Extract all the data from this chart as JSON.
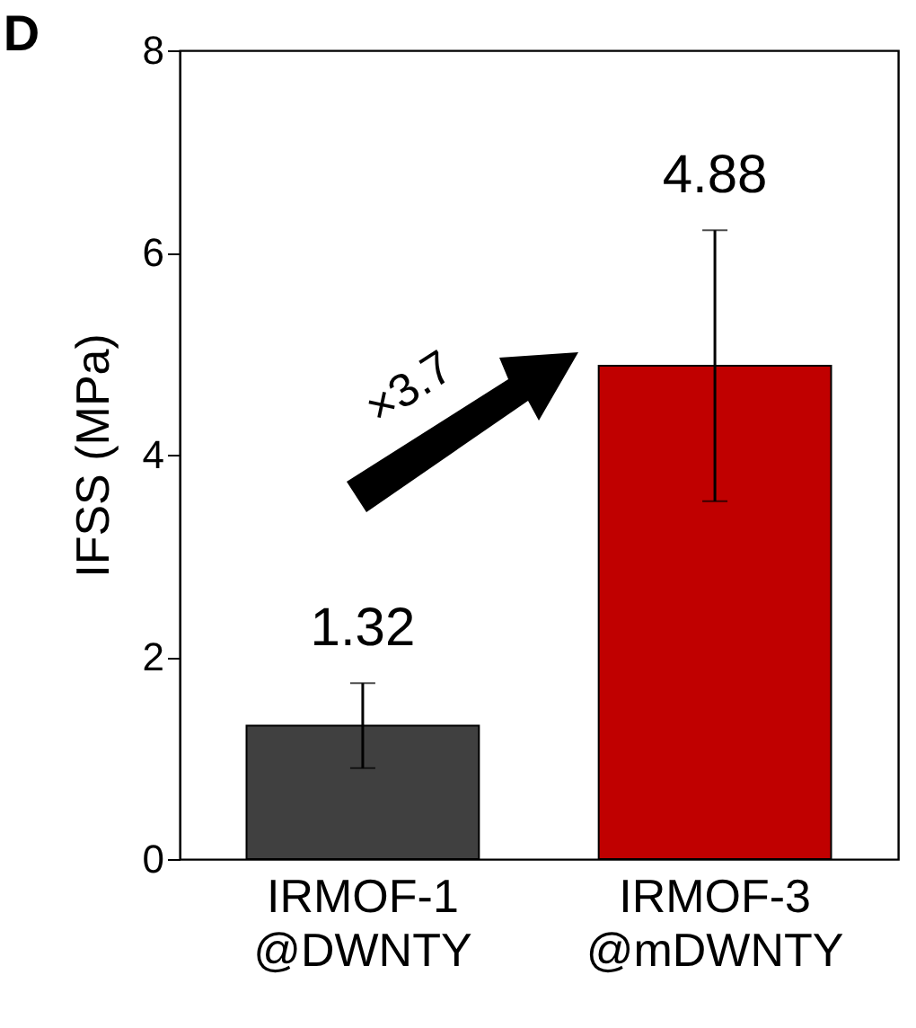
{
  "chart_data": {
    "type": "bar",
    "ylabel": "IFSS (MPa)",
    "categories": [
      "IRMOF-1 @DWNTY",
      "IRMOF-3 @mDWNTY"
    ],
    "values": [
      1.32,
      4.88
    ],
    "colors": [
      "#404040",
      "#c00000"
    ],
    "errors": [
      0.42,
      1.34
    ],
    "data_labels": true,
    "ylim": [
      0,
      8
    ],
    "yticks": [
      0,
      2,
      4,
      6,
      8
    ],
    "grid": false,
    "annotations": [
      "D",
      "×3.7"
    ]
  }
}
